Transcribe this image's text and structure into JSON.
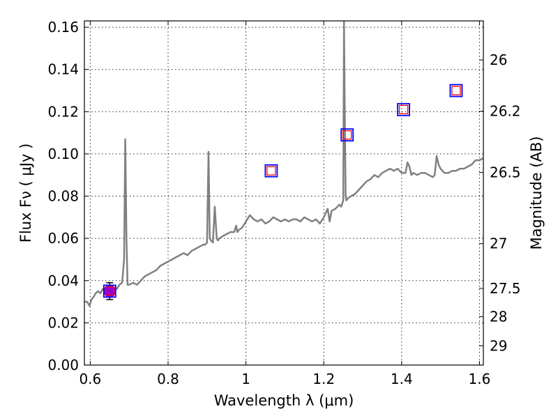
{
  "chart_data": {
    "type": "scatter",
    "xlabel": "Wavelength  λ (μm)",
    "ylabel": "Flux  Fν  ( μJy )",
    "ylabel_right": "Magnitude (AB)",
    "xlim": [
      0.585,
      1.61
    ],
    "ylim": [
      0.0,
      0.163
    ],
    "grid": true,
    "x_ticks": [
      0.6,
      0.8,
      1.0,
      1.2,
      1.4,
      1.6
    ],
    "x_tick_labels": [
      "0.6",
      "0.8",
      "1",
      "1.2",
      "1.4",
      "1.6"
    ],
    "y_ticks": [
      0.0,
      0.02,
      0.04,
      0.06,
      0.08,
      0.1,
      0.12,
      0.14,
      0.16
    ],
    "y_tick_labels": [
      "0.00",
      "0.02",
      "0.04",
      "0.06",
      "0.08",
      "0.10",
      "0.12",
      "0.14",
      "0.16"
    ],
    "right_ticks": [
      {
        "label": "26",
        "flux": 0.1445
      },
      {
        "label": "26.2",
        "flux": 0.1202
      },
      {
        "label": "26.5",
        "flux": 0.0912
      },
      {
        "label": "27",
        "flux": 0.0575
      },
      {
        "label": "27.5",
        "flux": 0.0363
      },
      {
        "label": "28",
        "flux": 0.0229
      },
      {
        "label": "29",
        "flux": 0.0091
      }
    ],
    "series": [
      {
        "type": "line",
        "color": "#808080",
        "x": [
          0.585,
          0.592,
          0.598,
          0.603,
          0.608,
          0.614,
          0.62,
          0.626,
          0.632,
          0.638,
          0.644,
          0.652,
          0.66,
          0.668,
          0.675,
          0.682,
          0.687,
          0.69,
          0.693,
          0.696,
          0.7,
          0.71,
          0.72,
          0.73,
          0.74,
          0.75,
          0.76,
          0.77,
          0.78,
          0.79,
          0.8,
          0.81,
          0.82,
          0.83,
          0.84,
          0.85,
          0.86,
          0.87,
          0.88,
          0.89,
          0.895,
          0.9,
          0.904,
          0.907,
          0.91,
          0.915,
          0.92,
          0.925,
          0.928,
          0.932,
          0.94,
          0.95,
          0.96,
          0.97,
          0.975,
          0.978,
          0.982,
          0.99,
          1.0,
          1.01,
          1.02,
          1.03,
          1.04,
          1.05,
          1.06,
          1.07,
          1.08,
          1.09,
          1.1,
          1.11,
          1.12,
          1.13,
          1.14,
          1.15,
          1.16,
          1.17,
          1.18,
          1.19,
          1.2,
          1.21,
          1.215,
          1.22,
          1.23,
          1.24,
          1.245,
          1.25,
          1.252,
          1.254,
          1.256,
          1.258,
          1.262,
          1.27,
          1.28,
          1.29,
          1.3,
          1.31,
          1.32,
          1.33,
          1.34,
          1.35,
          1.36,
          1.37,
          1.38,
          1.39,
          1.4,
          1.41,
          1.415,
          1.42,
          1.425,
          1.43,
          1.44,
          1.45,
          1.46,
          1.47,
          1.48,
          1.485,
          1.49,
          1.495,
          1.5,
          1.51,
          1.52,
          1.53,
          1.54,
          1.55,
          1.56,
          1.57,
          1.58,
          1.59,
          1.6,
          1.61
        ],
        "y": [
          0.03,
          0.03,
          0.028,
          0.031,
          0.032,
          0.034,
          0.035,
          0.034,
          0.036,
          0.035,
          0.036,
          0.035,
          0.036,
          0.036,
          0.038,
          0.039,
          0.05,
          0.107,
          0.06,
          0.038,
          0.038,
          0.039,
          0.038,
          0.04,
          0.042,
          0.043,
          0.044,
          0.045,
          0.047,
          0.048,
          0.049,
          0.05,
          0.051,
          0.052,
          0.053,
          0.052,
          0.054,
          0.055,
          0.056,
          0.057,
          0.057,
          0.058,
          0.101,
          0.06,
          0.059,
          0.058,
          0.075,
          0.06,
          0.059,
          0.06,
          0.061,
          0.062,
          0.063,
          0.063,
          0.066,
          0.063,
          0.064,
          0.065,
          0.068,
          0.071,
          0.069,
          0.068,
          0.069,
          0.067,
          0.068,
          0.07,
          0.069,
          0.068,
          0.069,
          0.068,
          0.069,
          0.069,
          0.068,
          0.07,
          0.069,
          0.068,
          0.069,
          0.067,
          0.07,
          0.074,
          0.068,
          0.073,
          0.074,
          0.076,
          0.075,
          0.078,
          0.163,
          0.12,
          0.08,
          0.078,
          0.079,
          0.08,
          0.081,
          0.083,
          0.085,
          0.087,
          0.088,
          0.09,
          0.089,
          0.091,
          0.092,
          0.093,
          0.092,
          0.093,
          0.091,
          0.091,
          0.096,
          0.094,
          0.09,
          0.091,
          0.09,
          0.091,
          0.091,
          0.09,
          0.089,
          0.09,
          0.099,
          0.095,
          0.093,
          0.091,
          0.091,
          0.092,
          0.092,
          0.093,
          0.093,
          0.094,
          0.095,
          0.097,
          0.097,
          0.098
        ]
      },
      {
        "type": "scatter",
        "marker": "square",
        "color": "#0000ff",
        "x": [
          0.65,
          1.065,
          1.26,
          1.405,
          1.54
        ],
        "y": [
          0.035,
          0.092,
          0.109,
          0.121,
          0.13
        ]
      },
      {
        "type": "scatter",
        "marker": "square",
        "color": "#ff0000",
        "x": [
          0.65,
          1.065,
          1.26,
          1.405,
          1.54
        ],
        "y": [
          0.035,
          0.092,
          0.109,
          0.121,
          0.13
        ]
      },
      {
        "type": "scatter",
        "marker": "circle",
        "color": "#9900cc",
        "x": [
          0.65
        ],
        "y": [
          0.035
        ],
        "yerr": [
          0.004
        ]
      }
    ]
  }
}
